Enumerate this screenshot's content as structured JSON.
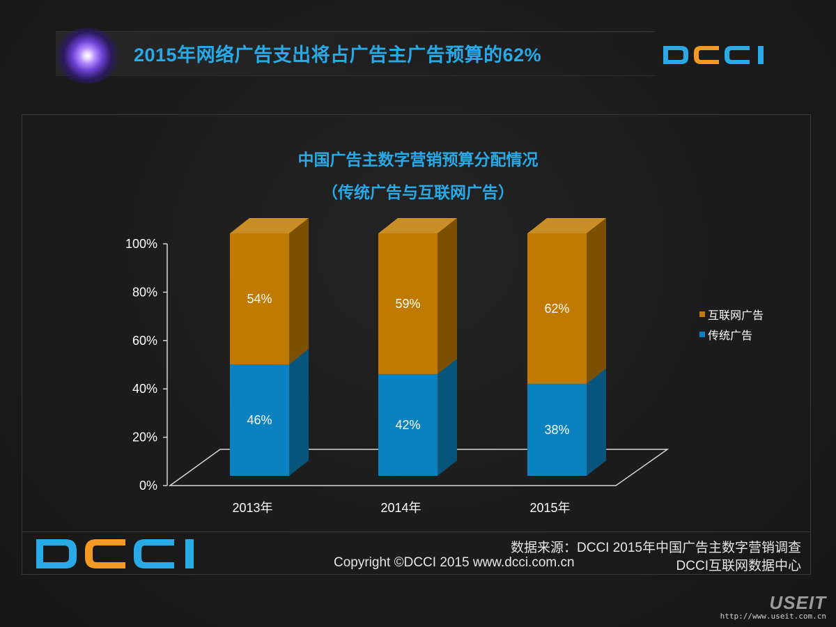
{
  "header": {
    "title": "2015年网络广告支出将占广告主广告预算的62%",
    "logo_text": "DCCI"
  },
  "colors": {
    "accent_blue": "#29a9e6",
    "logo_orange": "#f39a22",
    "internet_bar": "#c07a00",
    "traditional_bar": "#0a82c0"
  },
  "chart_data": {
    "type": "bar",
    "stacked": true,
    "title": "中国广告主数字营销预算分配情况",
    "subtitle": "（传统广告与互联网广告）",
    "categories": [
      "2013年",
      "2014年",
      "2015年"
    ],
    "series": [
      {
        "name": "传统广告",
        "values": [
          46,
          42,
          38
        ],
        "labels": [
          "46%",
          "42%",
          "38%"
        ],
        "color": "#0a82c0"
      },
      {
        "name": "互联网广告",
        "values": [
          54,
          59,
          62
        ],
        "labels": [
          "54%",
          "59%",
          "62%"
        ],
        "color": "#c07a00"
      }
    ],
    "y_ticks": [
      "0%",
      "20%",
      "40%",
      "60%",
      "80%",
      "100%"
    ],
    "ylim": [
      0,
      100
    ],
    "legend_position": "right",
    "grid": false
  },
  "footer": {
    "source": "数据来源：DCCI  2015年中国广告主数字营销调查",
    "copyright": "Copyright ©DCCI 2015 www.dcci.com.cn",
    "department": "DCCI互联网数据中心"
  },
  "watermark": {
    "brand": "USEIT",
    "url": "http://www.useit.com.cn"
  }
}
